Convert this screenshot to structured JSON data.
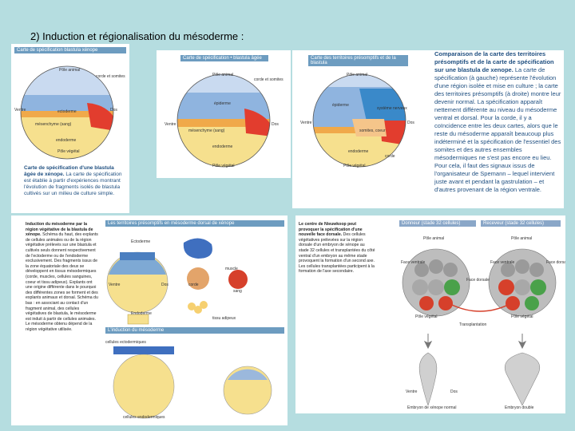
{
  "slide": {
    "title": "2) Induction et régionalisation du mésoderme :"
  },
  "figure1": {
    "header": "Carte de spécification blastula xénope",
    "labels": {
      "pole_animal": "Pôle animal",
      "ectoderme": "ectoderme",
      "endoderme": "endoderme",
      "mesoderme_dorsal": "cordé",
      "mesenchyme": "mésenchyme (sang)",
      "ventre": "Ventre",
      "dos": "Dos",
      "pole_vegetal": "Pôle végétal",
      "cordes": "corde et somites"
    },
    "caption_bold": "Carte de spécification d'une blastula âgée de xénope.",
    "caption_rest": "La carte de spécification est établie à partir d'expériences montrant l'évolution de fragments isolés de blastula cultivés sur un milieu de culture simple."
  },
  "figure2": {
    "header": "Carte de spécification • blastula âgée",
    "labels": {
      "pole_animal": "Pôle animal",
      "cordes": "corde et somites",
      "epiderme": "épiderme",
      "ventre": "Ventre",
      "dos": "Dos",
      "mesenchyme": "mésenchyme (sang)",
      "endoderme": "endoderme",
      "pole_vegetal": "Pôle végétal"
    }
  },
  "figure3": {
    "header": "Carte des territoires présomptifs et de la blastula",
    "labels": {
      "pole_animal": "Pôle animal",
      "epiderme": "épiderme",
      "systeme_nerveux": "système nerveux",
      "ventre": "Ventre",
      "dos": "Dos",
      "somites": "somites, coeur",
      "endoderme": "endoderme",
      "corde": "corde",
      "pole_vegetal": "Pôle végétal"
    },
    "text_heading": "Comparaison de la carte des territoires présomptifs et de la carte de spécification sur une blastula de xenope.",
    "text_body": "La carte de spécification (à gauche) représente l'évolution d'une région isolée et mise en culture ; la carte des territoires présomptifs (à droite) montre leur devenir normal. La spécification apparaît nettement différente au niveau du mésoderme ventral et dorsal. Pour la corde, il y a coïncidence entre les deux cartes, alors que le reste du mésoderme apparaît beaucoup plus indéterminé et la spécification de l'essentiel des somites et des autres ensembles mésodermiques ne s'est pas encore eu lieu. Pour cela, il faut des signaux issus de l'organisateur de Spemann – lequel intervient juste avant et pendant la gastrulation – et d'autres provenant de la région ventrale."
  },
  "figure4": {
    "header_top": "Les territoires présomptifs en mésoderme dorsal de xénope",
    "header_bottom": "L'induction du mésoderme",
    "labels": {
      "ectoderme": "Ectoderme",
      "endoderme": "Endoderme",
      "ventre": "Ventre",
      "dos": "Dos",
      "cellules_ectodermiques": "cellules ectodermiques",
      "cellules_endodermiques": "cellules endodermiques",
      "corde": "corde",
      "muscle": "muscle",
      "sang": "sang",
      "tissu_adipeux": "tissu adipeux"
    },
    "text_heading": "Induction du mésoderme par la région végétative de la blastula de xénope.",
    "text_body": "Schéma du haut, des explants de cellules animales ou de la région végétative prélevés sur une blastula et cultivés seuls donnent respectivement de l'ectoderme ou de l'endoderme exclusivement. Des fragments issus de la zone équatoriale des deux se développent en tissus mésodermiques (corde, muscles, cellules sanguines, coeur et tissu adipeux). Explants ont une origine différente dans le pourquoi des différentes zones se forment et des explants animaux et dorsal. Schéma du bas : en associant au contact d'un fragment animal, des cellules végétatives de blastula, le mésoderme est induit à partir de cellules animales. Le mésoderme obtenu dépend de la région végétative utilisée."
  },
  "figure5": {
    "text_heading": "Le centre de Nieuwkoop peut provoquer la spécification d'une nouvelle face dorsale.",
    "text_body": "Des cellules végétatives prélevées sur la région dorsale d'un embryon de xénope au stade 32 cellules et transplantées du côté ventral d'un embryon au même stade provoquent la formation d'un second axe. Les cellules transplantées participent à la formation de l'axe secondaire.",
    "left_header": "Donneur (stade 32 cellules)",
    "right_header": "Receveur (stade 32 cellules)",
    "labels": {
      "pole_animal": "Pôle animal",
      "face_ventrale": "Face ventrale",
      "face_dorsale": "Face dorsale",
      "pole_vegetal": "Pôle végétal",
      "ventre": "Ventre",
      "dos": "Dos",
      "transplantation": "Transplantation",
      "embryon_normal": "Embryon de xénope normal",
      "embryon_double": "Embryon double"
    },
    "colors": {
      "gray": "#9a9a9a",
      "red": "#d6402b",
      "green": "#4aa14a"
    }
  }
}
